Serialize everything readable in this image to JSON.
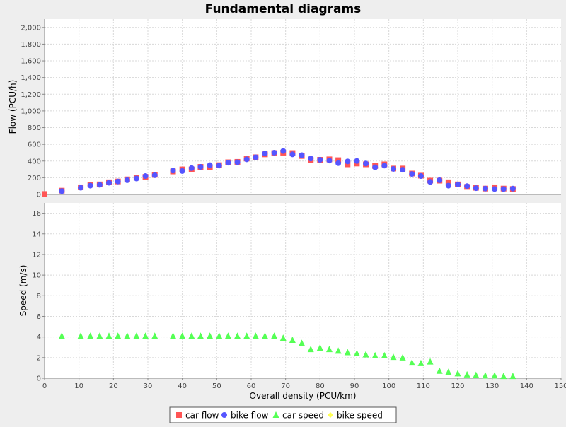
{
  "chart_data": {
    "type": "scatter",
    "title": "Fundamental diagrams",
    "xlabel": "Overall density (PCU/km)",
    "xlim": [
      0,
      150
    ],
    "x_ticks": [
      "0",
      "10",
      "20",
      "30",
      "40",
      "50",
      "60",
      "70",
      "80",
      "90",
      "100",
      "110",
      "120",
      "130",
      "140",
      "150"
    ],
    "grid": true,
    "legend_position": "bottom",
    "legend_border": true,
    "subplots": [
      {
        "ylabel": "Flow (PCU/h)",
        "ylim": [
          0,
          2100
        ],
        "y_ticks": [
          "0",
          "200",
          "400",
          "600",
          "800",
          "1,000",
          "1,200",
          "1,400",
          "1,600",
          "1,800",
          "2,000"
        ],
        "series": [
          {
            "name": "car flow",
            "marker": "square",
            "color": "#ff5555",
            "points": [
              [
                0,
                5
              ],
              [
                5,
                45
              ],
              [
                10.5,
                85
              ],
              [
                13.3,
                118
              ],
              [
                16,
                120
              ],
              [
                18.7,
                145
              ],
              [
                21.3,
                155
              ],
              [
                24,
                180
              ],
              [
                26.7,
                200
              ],
              [
                29.3,
                210
              ],
              [
                32,
                235
              ],
              [
                37.3,
                275
              ],
              [
                40,
                300
              ],
              [
                42.7,
                300
              ],
              [
                45.3,
                330
              ],
              [
                48,
                325
              ],
              [
                50.7,
                350
              ],
              [
                53.3,
                385
              ],
              [
                56,
                390
              ],
              [
                58.7,
                430
              ],
              [
                61.3,
                445
              ],
              [
                64,
                480
              ],
              [
                66.7,
                495
              ],
              [
                69.3,
                500
              ],
              [
                72,
                495
              ],
              [
                74.7,
                460
              ],
              [
                77.3,
                415
              ],
              [
                80,
                415
              ],
              [
                82.7,
                420
              ],
              [
                85.3,
                410
              ],
              [
                88,
                360
              ],
              [
                90.7,
                370
              ],
              [
                93.3,
                360
              ],
              [
                96,
                340
              ],
              [
                98.7,
                360
              ],
              [
                101.3,
                310
              ],
              [
                104,
                310
              ],
              [
                106.7,
                250
              ],
              [
                109.3,
                225
              ],
              [
                112,
                165
              ],
              [
                114.7,
                165
              ],
              [
                117.3,
                145
              ],
              [
                120,
                120
              ],
              [
                122.7,
                90
              ],
              [
                125.3,
                80
              ],
              [
                128,
                70
              ],
              [
                130.7,
                85
              ],
              [
                133.3,
                70
              ],
              [
                136,
                65
              ]
            ]
          },
          {
            "name": "bike flow",
            "marker": "circle",
            "color": "#5555ff",
            "points": [
              [
                5,
                40
              ],
              [
                10.5,
                80
              ],
              [
                13.3,
                105
              ],
              [
                16,
                115
              ],
              [
                18.7,
                140
              ],
              [
                21.3,
                155
              ],
              [
                24,
                170
              ],
              [
                26.7,
                190
              ],
              [
                29.3,
                220
              ],
              [
                32,
                230
              ],
              [
                37.3,
                285
              ],
              [
                40,
                280
              ],
              [
                42.7,
                315
              ],
              [
                45.3,
                330
              ],
              [
                48,
                350
              ],
              [
                50.7,
                345
              ],
              [
                53.3,
                380
              ],
              [
                56,
                385
              ],
              [
                58.7,
                420
              ],
              [
                61.3,
                445
              ],
              [
                64,
                490
              ],
              [
                66.7,
                500
              ],
              [
                69.3,
                520
              ],
              [
                72,
                480
              ],
              [
                74.7,
                470
              ],
              [
                77.3,
                430
              ],
              [
                80,
                415
              ],
              [
                82.7,
                405
              ],
              [
                85.3,
                375
              ],
              [
                88,
                395
              ],
              [
                90.7,
                400
              ],
              [
                93.3,
                370
              ],
              [
                96,
                325
              ],
              [
                98.7,
                345
              ],
              [
                101.3,
                305
              ],
              [
                104,
                295
              ],
              [
                106.7,
                245
              ],
              [
                109.3,
                220
              ],
              [
                112,
                150
              ],
              [
                114.7,
                170
              ],
              [
                117.3,
                105
              ],
              [
                120,
                120
              ],
              [
                122.7,
                100
              ],
              [
                125.3,
                75
              ],
              [
                128,
                70
              ],
              [
                130.7,
                65
              ],
              [
                133.3,
                65
              ],
              [
                136,
                70
              ]
            ]
          }
        ]
      },
      {
        "ylabel": "Speed (m/s)",
        "ylim": [
          0,
          17
        ],
        "y_ticks": [
          "0",
          "2",
          "4",
          "6",
          "8",
          "10",
          "12",
          "14",
          "16"
        ],
        "series": [
          {
            "name": "car speed",
            "marker": "triangle",
            "color": "#55ff55",
            "points": [
              [
                5,
                4.1
              ],
              [
                10.5,
                4.1
              ],
              [
                13.3,
                4.1
              ],
              [
                16,
                4.1
              ],
              [
                18.7,
                4.1
              ],
              [
                21.3,
                4.1
              ],
              [
                24,
                4.1
              ],
              [
                26.7,
                4.1
              ],
              [
                29.3,
                4.1
              ],
              [
                32,
                4.1
              ],
              [
                37.3,
                4.1
              ],
              [
                40,
                4.1
              ],
              [
                42.7,
                4.1
              ],
              [
                45.3,
                4.1
              ],
              [
                48,
                4.1
              ],
              [
                50.7,
                4.1
              ],
              [
                53.3,
                4.1
              ],
              [
                56,
                4.1
              ],
              [
                58.7,
                4.1
              ],
              [
                61.3,
                4.1
              ],
              [
                64,
                4.1
              ],
              [
                66.7,
                4.1
              ],
              [
                69.3,
                3.9
              ],
              [
                72,
                3.7
              ],
              [
                74.7,
                3.4
              ],
              [
                77.3,
                2.8
              ],
              [
                80,
                2.95
              ],
              [
                82.7,
                2.8
              ],
              [
                85.3,
                2.65
              ],
              [
                88,
                2.5
              ],
              [
                90.7,
                2.4
              ],
              [
                93.3,
                2.3
              ],
              [
                96,
                2.2
              ],
              [
                98.7,
                2.2
              ],
              [
                101.3,
                2.05
              ],
              [
                104,
                2.0
              ],
              [
                106.7,
                1.5
              ],
              [
                109.3,
                1.45
              ],
              [
                112,
                1.6
              ],
              [
                114.7,
                0.7
              ],
              [
                117.3,
                0.6
              ],
              [
                120,
                0.45
              ],
              [
                122.7,
                0.35
              ],
              [
                125.3,
                0.3
              ],
              [
                128,
                0.25
              ],
              [
                130.7,
                0.25
              ],
              [
                133.3,
                0.2
              ],
              [
                136,
                0.2
              ]
            ]
          },
          {
            "name": "bike speed",
            "marker": "diamond",
            "color": "#ffff55",
            "points": []
          }
        ]
      }
    ]
  }
}
